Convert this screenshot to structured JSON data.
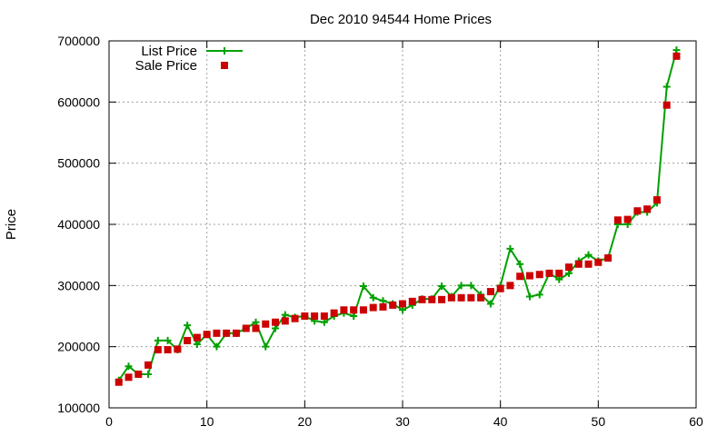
{
  "chart_data": {
    "type": "line",
    "title": "Dec 2010 94544 Home Prices",
    "xlabel": "",
    "ylabel": "Price",
    "xlim": [
      0,
      60
    ],
    "ylim": [
      100000,
      700000
    ],
    "xticks": [
      0,
      10,
      20,
      30,
      40,
      50,
      60
    ],
    "xtick_labels": [
      "0",
      "10",
      "20",
      "30",
      "40",
      "50",
      "60"
    ],
    "yticks": [
      100000,
      200000,
      300000,
      400000,
      500000,
      600000,
      700000
    ],
    "ytick_labels": [
      "100000",
      "200000",
      "300000",
      "400000",
      "500000",
      "600000",
      "700000"
    ],
    "grid": true,
    "legend_position": "top-left",
    "x": [
      1,
      2,
      3,
      4,
      5,
      6,
      7,
      8,
      9,
      10,
      11,
      12,
      13,
      14,
      15,
      16,
      17,
      18,
      19,
      20,
      21,
      22,
      23,
      24,
      25,
      26,
      27,
      28,
      29,
      30,
      31,
      32,
      33,
      34,
      35,
      36,
      37,
      38,
      39,
      40,
      41,
      42,
      43,
      44,
      45,
      46,
      47,
      48,
      49,
      50,
      51,
      52,
      53,
      54,
      55,
      56,
      57,
      58
    ],
    "series": [
      {
        "name": "List Price",
        "style": "line-plus",
        "color": "#00a000",
        "values": [
          145000,
          168000,
          155000,
          155000,
          210000,
          210000,
          195000,
          235000,
          204000,
          220000,
          200000,
          222000,
          222000,
          230000,
          240000,
          200000,
          230000,
          252000,
          248000,
          250000,
          242000,
          240000,
          250000,
          255000,
          250000,
          299000,
          280000,
          275000,
          270000,
          260000,
          268000,
          278000,
          278000,
          299000,
          282000,
          300000,
          300000,
          285000,
          270000,
          300000,
          360000,
          335000,
          282000,
          285000,
          320000,
          310000,
          320000,
          340000,
          350000,
          340000,
          345000,
          400000,
          400000,
          420000,
          420000,
          435000,
          625000,
          685000
        ]
      },
      {
        "name": "Sale Price",
        "style": "square-points",
        "color": "#cc0000",
        "values": [
          142000,
          150000,
          155000,
          170000,
          195000,
          195000,
          196000,
          210000,
          215000,
          220000,
          222000,
          222000,
          222000,
          230000,
          230000,
          237000,
          240000,
          242000,
          246000,
          250000,
          250000,
          250000,
          255000,
          260000,
          260000,
          260000,
          264000,
          265000,
          268000,
          270000,
          274000,
          277000,
          277000,
          277000,
          280000,
          280000,
          280000,
          280000,
          290000,
          295000,
          300000,
          315000,
          316000,
          318000,
          320000,
          320000,
          330000,
          335000,
          335000,
          338000,
          345000,
          407000,
          408000,
          422000,
          425000,
          440000,
          595000,
          675000
        ]
      }
    ]
  }
}
